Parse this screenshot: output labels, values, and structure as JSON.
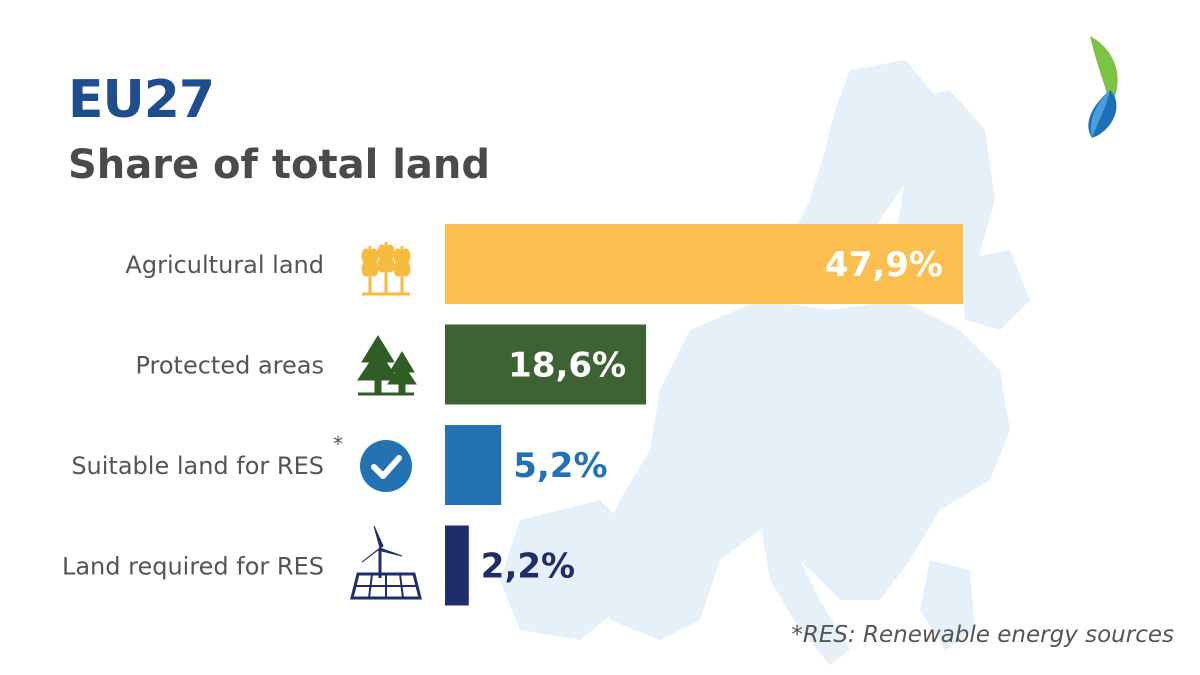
{
  "header": {
    "title": "EU27",
    "subtitle": "Share of total land"
  },
  "footnote": "*RES: Renewable energy sources",
  "icons": [
    "wheat-icon",
    "trees-icon",
    "check-circle-icon",
    "wind-solar-icon"
  ],
  "colors": {
    "title": "#1f4e8c",
    "subtitle": "#4a4a4a",
    "map": "#e6f0f8"
  },
  "chart_data": {
    "type": "bar",
    "orientation": "horizontal",
    "categories": [
      "Agricultural land",
      "Protected areas",
      "Suitable land for RES",
      "Land required for RES"
    ],
    "category_marks": [
      "",
      "",
      "*",
      ""
    ],
    "values": [
      47.9,
      18.6,
      5.2,
      2.2
    ],
    "value_labels": [
      "47,9%",
      "18,6%",
      "5,2%",
      "2,2%"
    ],
    "label_position": [
      "inside",
      "inside",
      "outside",
      "outside"
    ],
    "bar_colors": [
      "#fbbf50",
      "#3d6332",
      "#2272b4",
      "#1f2e6a"
    ],
    "label_colors": [
      "#ffffff",
      "#ffffff",
      "#2272b4",
      "#1f2e6a"
    ],
    "icon_colors": [
      "#f6bb3f",
      "#2f5d24",
      "#2272b4",
      "#1f2e6a"
    ],
    "unit": "%",
    "xlim": [
      0,
      47.9
    ]
  }
}
